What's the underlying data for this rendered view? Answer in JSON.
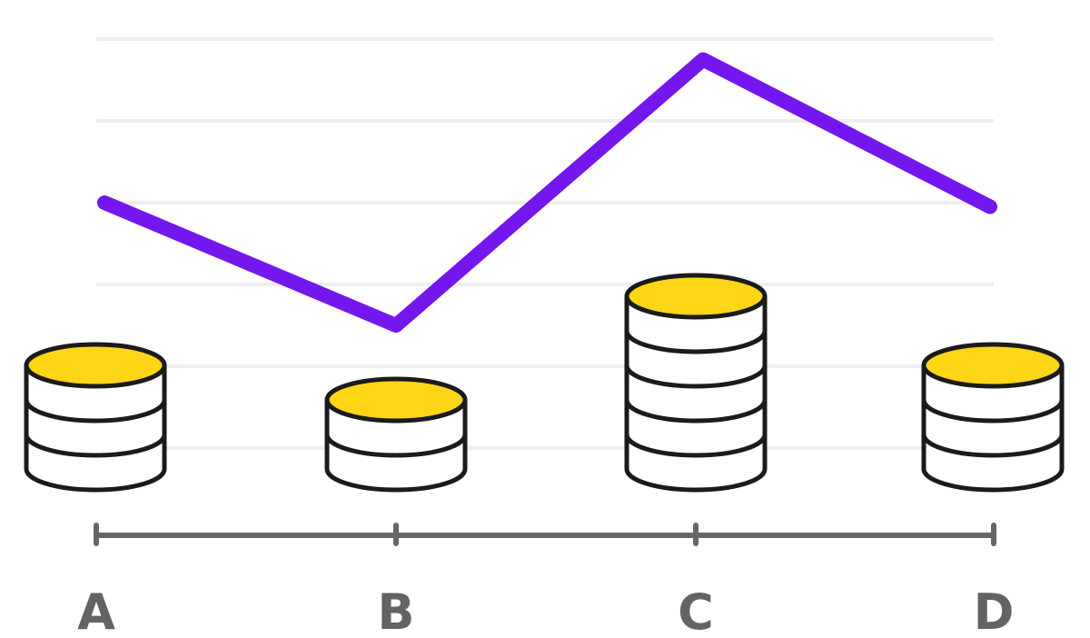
{
  "chart_data": {
    "type": "line",
    "categories": [
      "A",
      "B",
      "C",
      "D"
    ],
    "series": [
      {
        "values": [
          6,
          3,
          9.5,
          5.9
        ],
        "stacks": [
          3,
          2,
          5,
          3
        ]
      }
    ],
    "ylim": [
      0,
      10
    ],
    "grid": true,
    "legend": "none"
  },
  "colors": {
    "line": "#7417ee",
    "coin_top": "#ffd616",
    "coin_body": "#ffffff",
    "outline": "#1b1b1b",
    "axis": "#666666",
    "grid": "#eeeeee",
    "label": "#636363"
  },
  "icons": {
    "stack": "coin-stack-icon"
  }
}
